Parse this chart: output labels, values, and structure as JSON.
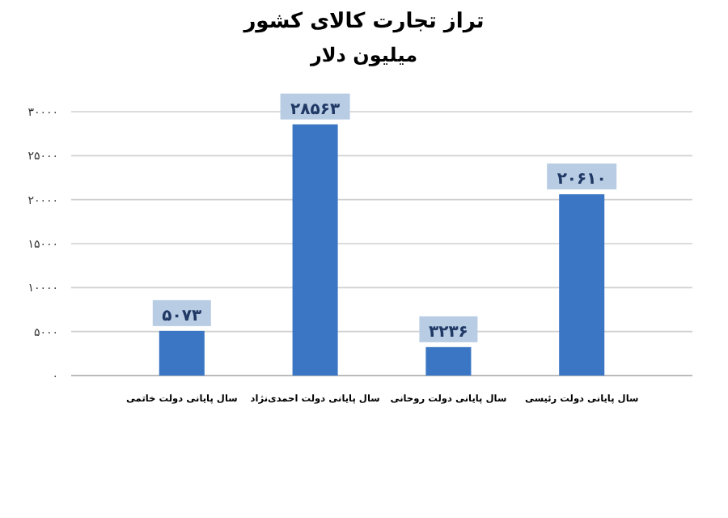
{
  "chart_data": {
    "type": "bar",
    "title": "تراز تجارت کالای کشور",
    "subtitle": "میلیون دلار",
    "categories": [
      "سال پایانی دولت خاتمی",
      "سال پایانی دولت احمدی‌نژاد",
      "سال پایانی دولت روحانی",
      "سال پایانی دولت رئیسی"
    ],
    "values": [
      5073,
      28563,
      3236,
      20610
    ],
    "value_labels": [
      "۵۰۷۳",
      "۲۸۵۶۳",
      "۳۲۳۶",
      "۲۰۶۱۰"
    ],
    "color": "#3a76c4",
    "ylim": [
      0,
      30000
    ],
    "yticks": [
      {
        "value": 0,
        "label": "۰"
      },
      {
        "value": 5000,
        "label": "۵۰۰۰"
      },
      {
        "value": 10000,
        "label": "۱۰۰۰۰"
      },
      {
        "value": 15000,
        "label": "۱۵۰۰۰"
      },
      {
        "value": 20000,
        "label": "۲۰۰۰۰"
      },
      {
        "value": 25000,
        "label": "۲۵۰۰۰"
      },
      {
        "value": 30000,
        "label": "۳۰۰۰۰"
      }
    ],
    "grid": "y"
  }
}
